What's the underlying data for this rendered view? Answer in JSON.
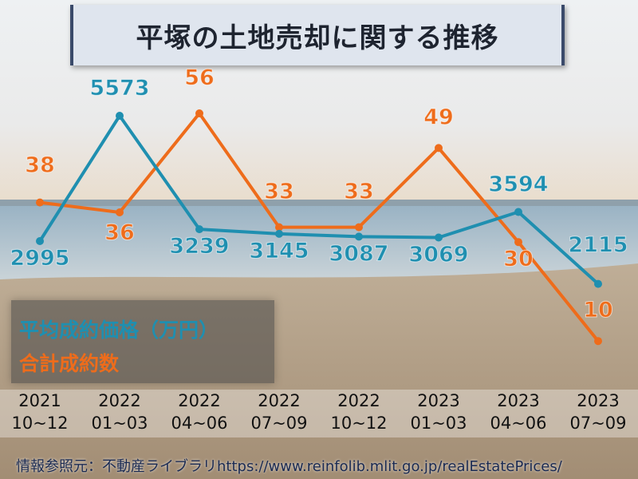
{
  "title": "平塚の土地売却に関する推移",
  "legend": {
    "avg_price": "平均成約価格（万円）",
    "count": "合計成約数"
  },
  "colors": {
    "avg_price": "#1f8fb0",
    "count": "#ee6c1b"
  },
  "periods": [
    {
      "year": "2021",
      "months": "10~12"
    },
    {
      "year": "2022",
      "months": "01~03"
    },
    {
      "year": "2022",
      "months": "04~06"
    },
    {
      "year": "2022",
      "months": "07~09"
    },
    {
      "year": "2022",
      "months": "10~12"
    },
    {
      "year": "2023",
      "months": "01~03"
    },
    {
      "year": "2023",
      "months": "04~06"
    },
    {
      "year": "2023",
      "months": "07~09"
    }
  ],
  "source": "情報参照元：不動産ライブラリhttps://www.reinfolib.mlit.go.jp/realEstatePrices/",
  "chart_data": {
    "type": "line",
    "categories": [
      "2021 10~12",
      "2022 01~03",
      "2022 04~06",
      "2022 07~09",
      "2022 10~12",
      "2023 01~03",
      "2023 04~06",
      "2023 07~09"
    ],
    "series": [
      {
        "name": "平均成約価格（万円）",
        "values": [
          2995,
          5573,
          3239,
          3145,
          3087,
          3069,
          3594,
          2115
        ]
      },
      {
        "name": "合計成約数",
        "values": [
          38,
          36,
          56,
          33,
          33,
          49,
          30,
          10
        ]
      }
    ],
    "legend_placement": "bottom-left",
    "grid": false
  }
}
